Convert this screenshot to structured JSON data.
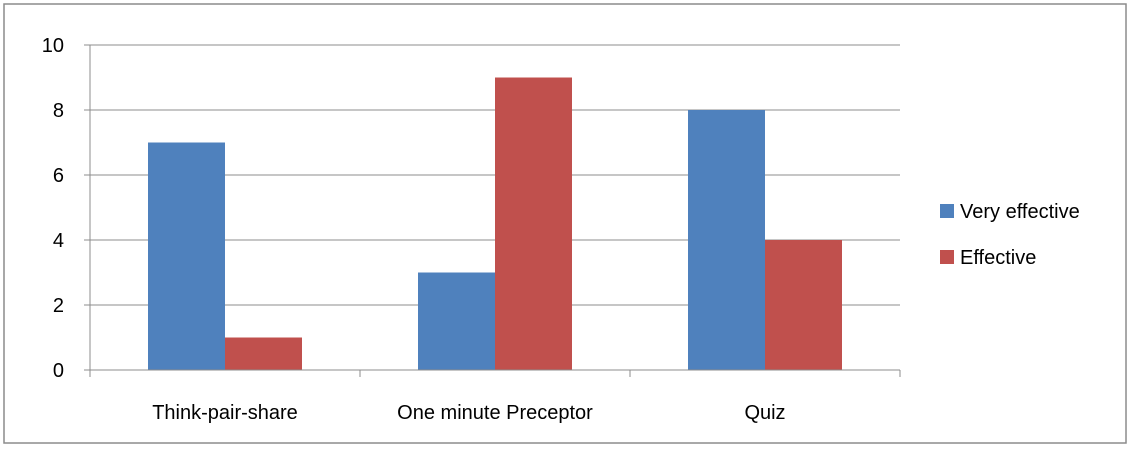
{
  "chart_data": {
    "type": "bar",
    "title": "",
    "xlabel": "",
    "ylabel": "",
    "categories": [
      "Think-pair-share",
      "One minute Preceptor",
      "Quiz"
    ],
    "series": [
      {
        "name": "Very effective",
        "color": "#4F81BD",
        "values": [
          7,
          3,
          8
        ]
      },
      {
        "name": "Effective",
        "color": "#C0504D",
        "values": [
          1,
          9,
          4
        ]
      }
    ],
    "ylim": [
      0,
      10
    ],
    "yticks": [
      0,
      2,
      4,
      6,
      8,
      10
    ],
    "grid": true,
    "legend_position": "right"
  }
}
